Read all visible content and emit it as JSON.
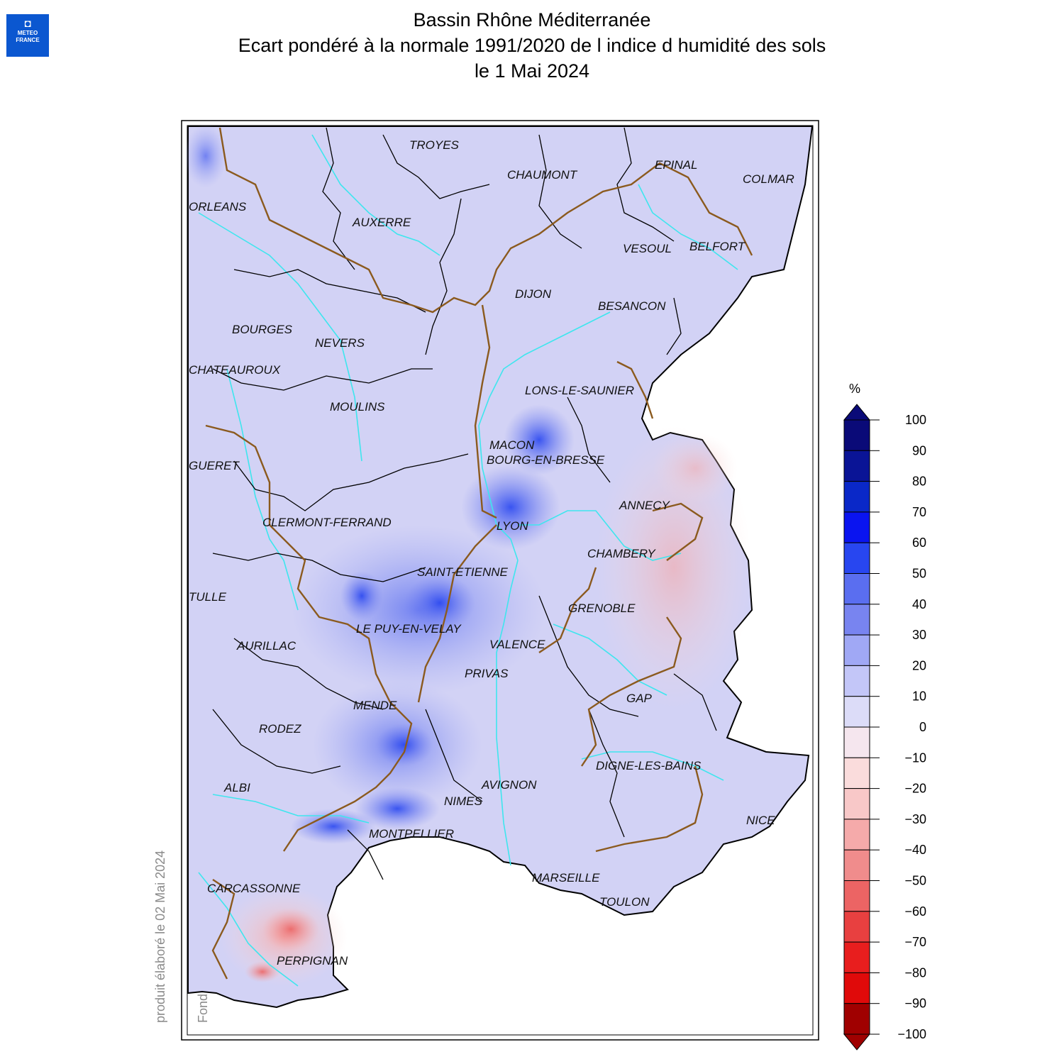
{
  "logo": {
    "line1": "METEO",
    "line2": "FRANCE"
  },
  "title": {
    "line1": "Bassin Rhône Méditerranée",
    "line2": "Ecart pondéré à la normale 1991/2020 de l indice d humidité des sols",
    "line3": "le 1 Mai 2024"
  },
  "credit": {
    "produced": "produit élaboré le 02 Mai 2024",
    "basemap": "Fond de Carte © IGN"
  },
  "cities": [
    "TROYES",
    "CHAUMONT",
    "EPINAL",
    "COLMAR",
    "ORLEANS",
    "AUXERRE",
    "VESOUL",
    "BELFORT",
    "DIJON",
    "BESANCON",
    "BOURGES",
    "NEVERS",
    "CHATEAUROUX",
    "LONS-LE-SAUNIER",
    "MOULINS",
    "MACON",
    "BOURG-EN-BRESSE",
    "GUERET",
    "ANNECY",
    "CLERMONT-FERRAND",
    "LYON",
    "CHAMBERY",
    "SAINT-ETIENNE",
    "TULLE",
    "GRENOBLE",
    "LE PUY-EN-VELAY",
    "AURILLAC",
    "VALENCE",
    "PRIVAS",
    "GAP",
    "MENDE",
    "RODEZ",
    "DIGNE-LES-BAINS",
    "ALBI",
    "AVIGNON",
    "NIMES",
    "NICE",
    "MONTPELLIER",
    "MARSEILLE",
    "CARCASSONNE",
    "TOULON",
    "PERPIGNAN"
  ],
  "legend": {
    "unit": "%",
    "ticks": [
      "100",
      "90",
      "80",
      "70",
      "60",
      "50",
      "40",
      "30",
      "20",
      "10",
      "0",
      "−10",
      "−20",
      "−30",
      "−40",
      "−50",
      "−60",
      "−70",
      "−80",
      "−90",
      "−100"
    ],
    "colors": [
      "#0a0a78",
      "#0a1496",
      "#0a28c8",
      "#0a14f0",
      "#2846f0",
      "#5a6ef0",
      "#7884f0",
      "#a0a8f5",
      "#c3c6f8",
      "#dcdcf8",
      "#f5e6ee",
      "#fadcdc",
      "#f8c8c8",
      "#f5aaaa",
      "#f08c8c",
      "#ec6464",
      "#e84040",
      "#e81e1e",
      "#e00a0a",
      "#a00000"
    ]
  }
}
